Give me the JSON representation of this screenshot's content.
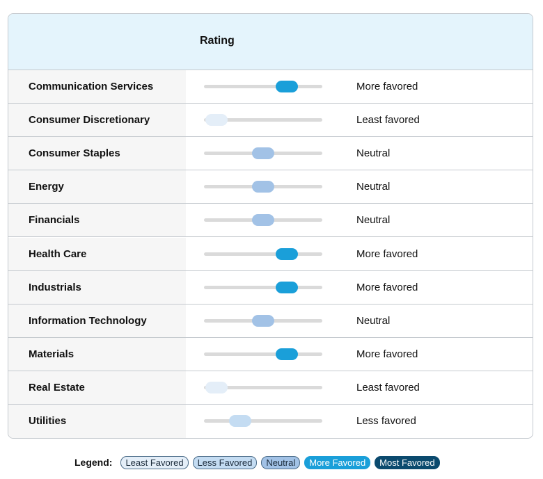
{
  "header": {
    "title": "Rating"
  },
  "table": {
    "rows": [
      [
        "Communication Services",
        "More favored"
      ],
      [
        "Consumer Discretionary",
        "Least favored"
      ],
      [
        "Consumer Staples",
        "Neutral"
      ],
      [
        "Energy",
        "Neutral"
      ],
      [
        "Financials",
        "Neutral"
      ],
      [
        "Health Care",
        "More favored"
      ],
      [
        "Industrials",
        "More favored"
      ],
      [
        "Information Technology",
        "Neutral"
      ],
      [
        "Materials",
        "More favored"
      ],
      [
        "Real Estate",
        "Least favored"
      ],
      [
        "Utilities",
        "Less favored"
      ]
    ]
  },
  "legend": {
    "title": "Legend:",
    "items": [
      {
        "label": "Least Favored",
        "color": "#e4eef8"
      },
      {
        "label": "Less Favored",
        "color": "#c4dcf2"
      },
      {
        "label": "Neutral",
        "color": "#a2c2e6"
      },
      {
        "label": "More Favored",
        "color": "#1a9fd9"
      },
      {
        "label": "Most Favored",
        "color": "#0b4a6e"
      }
    ]
  }
}
